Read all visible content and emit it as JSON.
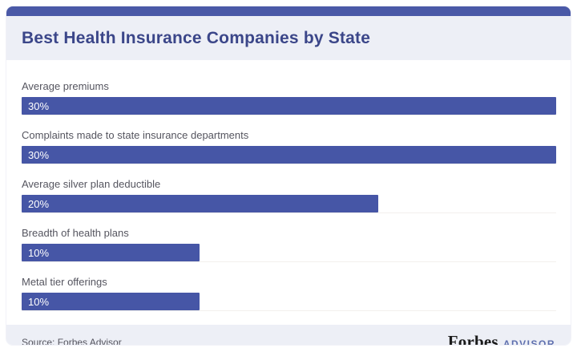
{
  "header": {
    "title": "Best Health Insurance Companies by State"
  },
  "chart_data": {
    "type": "bar",
    "orientation": "horizontal",
    "title": "Best Health Insurance Companies by State",
    "categories": [
      "Average premiums",
      "Complaints made to state insurance departments",
      "Average silver plan deductible",
      "Breadth of health plans",
      "Metal tier offerings"
    ],
    "values": [
      30,
      30,
      20,
      10,
      10
    ],
    "value_labels": [
      "30%",
      "30%",
      "20%",
      "10%",
      "10%"
    ],
    "xlabel": "",
    "ylabel": "",
    "xlim": [
      0,
      30
    ],
    "grid": false,
    "legend": false,
    "bar_color": "#4656a6"
  },
  "footer": {
    "source": "Source: Forbes Advisor",
    "logo_primary": "Forbes",
    "logo_secondary": "ADVISOR"
  },
  "colors": {
    "accent": "#4a59a7",
    "panel": "#edeff6",
    "title": "#3b4689",
    "label": "#55555f",
    "bar": "#4656a6",
    "logo_advisor": "#5e6fae"
  }
}
